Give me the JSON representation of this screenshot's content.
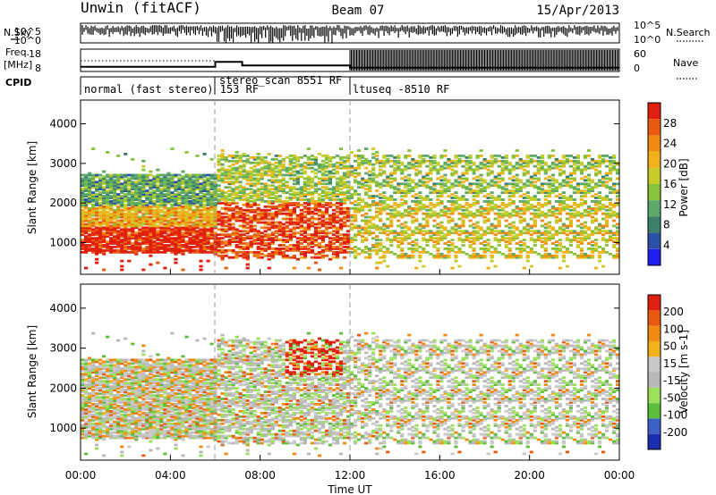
{
  "header": {
    "radar": "Unwin (fitACF)",
    "beam": "Beam 07",
    "date": "15/Apr/2013"
  },
  "side_labels": {
    "nsky": "N.Sky",
    "freq": "Freq.",
    "freq_unit": "[MHz]",
    "cpid": "CPID",
    "nsearch": "N.Search",
    "nave": "Nave"
  },
  "colors": {
    "power": [
      "#1f1fef",
      "#2c4fa8",
      "#3c7f6a",
      "#5da86a",
      "#86c23a",
      "#c8cc2a",
      "#f2b01a",
      "#f08a12",
      "#e85a10",
      "#e11f0f"
    ],
    "velocity": [
      "#1a2fb0",
      "#3c5fc8",
      "#5cbf3c",
      "#9be05a",
      "#b8b8b8",
      "#c8c8c8",
      "#f2b01a",
      "#f08a12",
      "#e85a10",
      "#e11f0f"
    ]
  },
  "chart_data": [
    {
      "type": "line",
      "name": "noise",
      "series": [
        {
          "name": "N.Sky",
          "y_range": [
            1,
            100000
          ]
        },
        {
          "name": "N.Search",
          "y_range": [
            1,
            100000
          ]
        }
      ],
      "left_ticks": [
        "10^5",
        "10^0"
      ],
      "right_ticks": [
        "10^5",
        "10^0"
      ]
    },
    {
      "type": "line",
      "name": "frequency-nave",
      "series": [
        {
          "name": "Freq.",
          "unit": "MHz",
          "x": [
            0,
            6,
            6,
            7.2,
            7.2,
            12,
            12,
            24
          ],
          "y": [
            9.5,
            9.5,
            12.2,
            12.2,
            10.2,
            10.2,
            9.0,
            9.0
          ]
        },
        {
          "name": "Nave",
          "ylim": [
            0,
            60
          ]
        }
      ],
      "left_ticks": [
        "18",
        "8"
      ],
      "right_ticks": [
        "60",
        "0"
      ]
    },
    {
      "type": "table",
      "name": "cpid",
      "segments": [
        {
          "label": "normal (fast stereo) 153 RF",
          "start": 0,
          "end": 6
        },
        {
          "label": "stereo_scan 8551 RF",
          "start": 6,
          "end": 12
        },
        {
          "label": "ltuseq -8510 RF",
          "start": 12,
          "end": 24
        }
      ]
    },
    {
      "type": "heatmap",
      "name": "power",
      "xlabel": "",
      "ylabel": "Slant Range [km]",
      "ylim": [
        200,
        4600
      ],
      "yticks": [
        1000,
        2000,
        3000,
        4000
      ],
      "colorbar": {
        "label": "Power [dB]",
        "range": [
          0,
          32
        ],
        "ticks": [
          "4",
          "8",
          "12",
          "16",
          "20",
          "24",
          "28"
        ]
      }
    },
    {
      "type": "heatmap",
      "name": "velocity",
      "xlabel": "Time UT",
      "ylabel": "Slant Range [km]",
      "ylim": [
        200,
        4600
      ],
      "yticks": [
        1000,
        2000,
        3000,
        4000
      ],
      "xticks": [
        "00:00",
        "04:00",
        "08:00",
        "12:00",
        "16:00",
        "20:00",
        "00:00"
      ],
      "colorbar": {
        "label": "Velocity [m s-1]",
        "ticks": [
          "200",
          "100",
          "50",
          "15",
          "-15",
          "-50",
          "-100",
          "-200"
        ]
      }
    }
  ]
}
